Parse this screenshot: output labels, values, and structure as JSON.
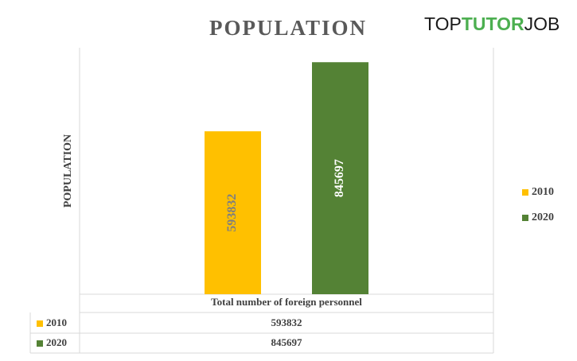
{
  "chart_data": {
    "type": "bar",
    "title": "POPULATION",
    "y_label": "POPULATION",
    "categories": [
      "Total number of foreign personnel"
    ],
    "series": [
      {
        "name": "2010",
        "color": "#ffc000",
        "label_color": "#7f7f7f",
        "values": [
          593832
        ]
      },
      {
        "name": "2020",
        "color": "#548235",
        "label_color": "#ffffff",
        "values": [
          845697
        ]
      }
    ],
    "ylim": [
      0,
      1000000
    ],
    "legend": "right",
    "data_table": true
  },
  "logo": {
    "parts": [
      "TOP",
      "TUTOR",
      "JOB"
    ]
  }
}
